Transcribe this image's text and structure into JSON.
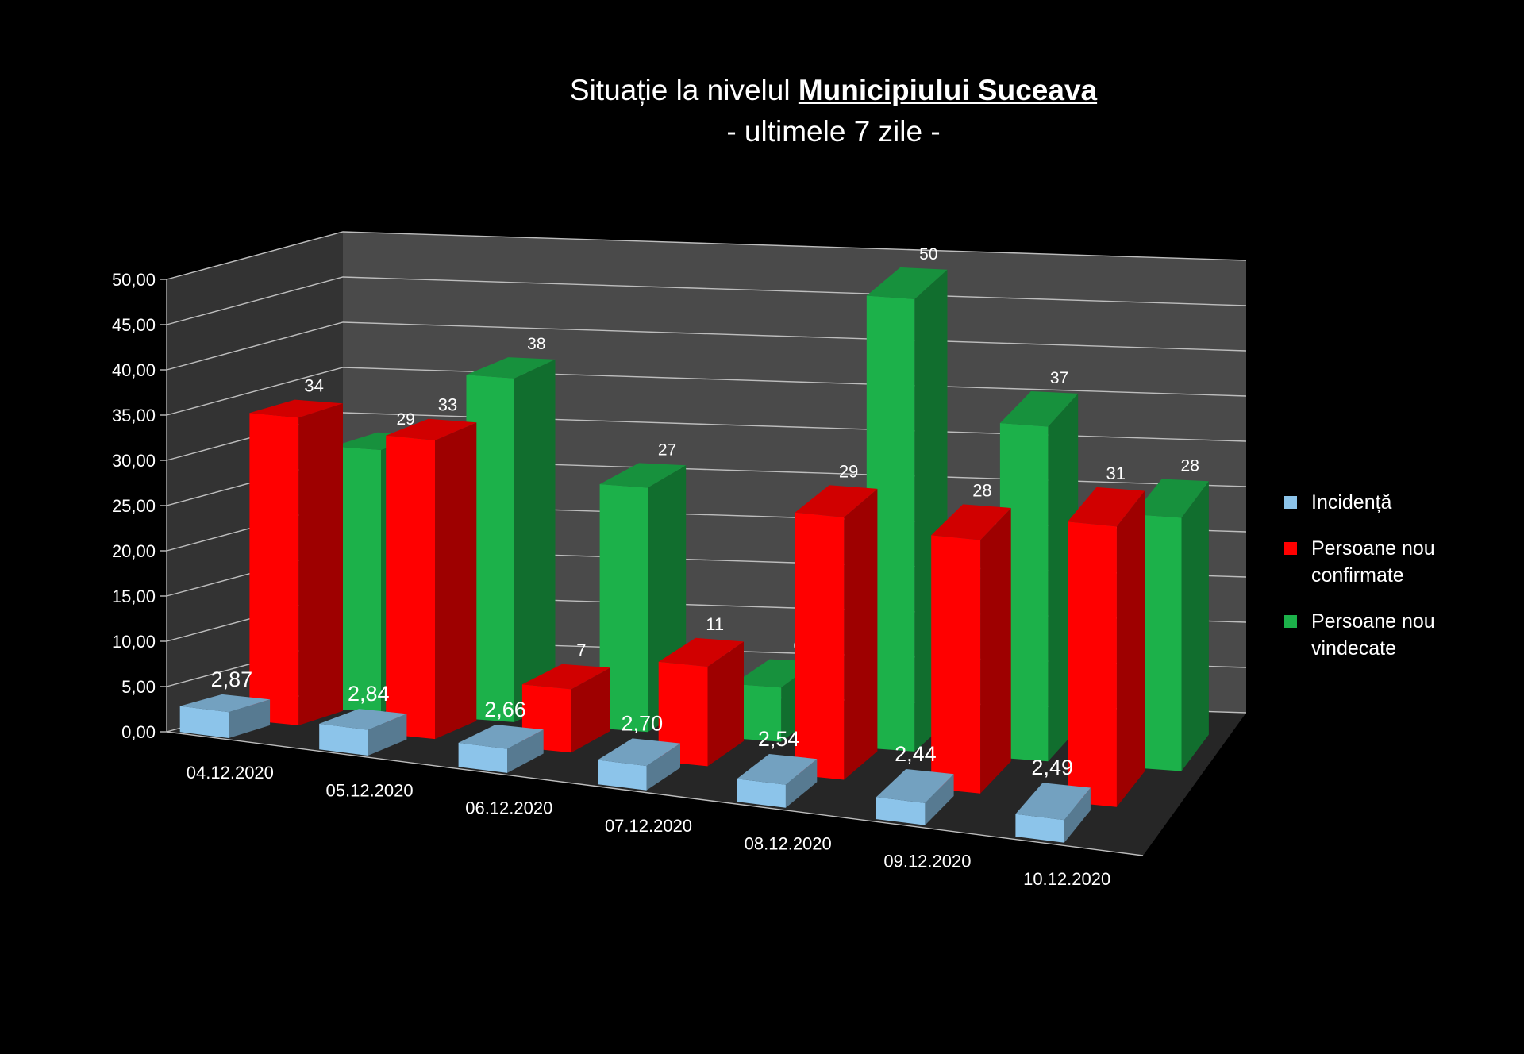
{
  "title": {
    "prefix": "Situație la nivelul ",
    "strong": "Municipiului Suceava",
    "subtitle": "- ultimele 7 zile -"
  },
  "colors": {
    "background": "#000000",
    "incidence": "#8cc4ea",
    "confirmed": "#ff0000",
    "recovered": "#1cb14a",
    "wall": "#4a4a4a",
    "floor": "#262626"
  },
  "legend": [
    {
      "label": "Incidență",
      "color": "#8cc4ea"
    },
    {
      "label": "Persoane nou confirmate",
      "color": "#ff0000"
    },
    {
      "label": "Persoane nou vindecate",
      "color": "#1cb14a"
    }
  ],
  "chart_data": {
    "type": "bar",
    "subtype": "3d-clustered-column",
    "title": "Situație la nivelul Municipiului Suceava - ultimele 7 zile -",
    "categories": [
      "04.12.2020",
      "05.12.2020",
      "06.12.2020",
      "07.12.2020",
      "08.12.2020",
      "09.12.2020",
      "10.12.2020"
    ],
    "series": [
      {
        "name": "Incidență",
        "values": [
          2.87,
          2.84,
          2.66,
          2.7,
          2.54,
          2.44,
          2.49
        ],
        "labels": [
          "2,87",
          "2,84",
          "2,66",
          "2,70",
          "2,54",
          "2,44",
          "2,49"
        ],
        "color": "#8cc4ea"
      },
      {
        "name": "Persoane nou confirmate",
        "values": [
          34,
          33,
          7,
          11,
          29,
          28,
          31
        ],
        "labels": [
          "34",
          "33",
          "7",
          "11",
          "29",
          "28",
          "31"
        ],
        "color": "#ff0000"
      },
      {
        "name": "Persoane nou vindecate",
        "values": [
          29,
          38,
          27,
          6,
          50,
          37,
          28
        ],
        "labels": [
          "29",
          "38",
          "27",
          "6",
          "50",
          "37",
          "28"
        ],
        "color": "#1cb14a"
      }
    ],
    "y_ticks": [
      "0,00",
      "5,00",
      "10,00",
      "15,00",
      "20,00",
      "25,00",
      "30,00",
      "35,00",
      "40,00",
      "45,00",
      "50,00"
    ],
    "ylim": [
      0,
      50
    ],
    "grid": true,
    "legend_position": "right"
  }
}
